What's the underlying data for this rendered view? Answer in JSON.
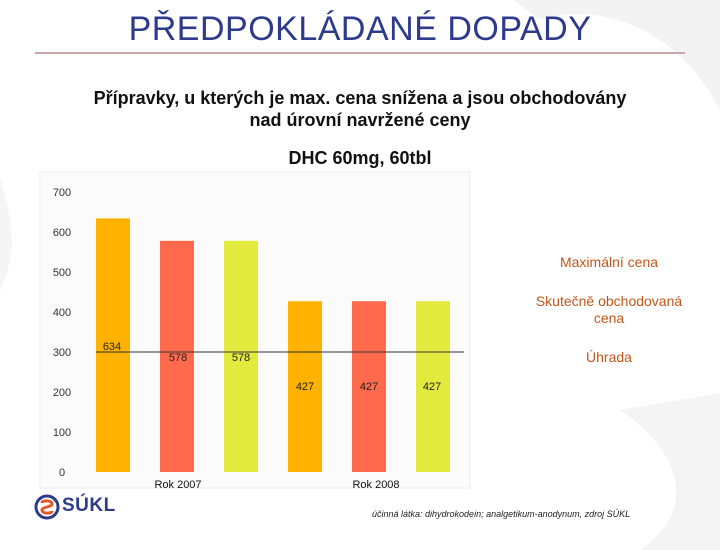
{
  "slide": {
    "title": "PŘEDPOKLÁDANÉ DOPADY",
    "subtitle_line1": "Přípravky, u kterých je max. cena snížena a jsou obchodovány",
    "subtitle_line2": "nad úrovní navržené ceny",
    "drug": "DHC 60mg, 60tbl",
    "source": "účinná látka: dihydrokodein; analgetikum-anodynum, zdroj SÚKL",
    "logo_text": "SÚKL"
  },
  "colors": {
    "title": "#2e3b8c",
    "max_price": "#ffb300",
    "traded_price": "#ff6a4d",
    "reimbursement": "#e2ea3d",
    "reference_line": "#333333"
  },
  "chart_data": {
    "type": "bar",
    "title": "DHC 60mg, 60tbl",
    "xlabel": "",
    "ylabel": "",
    "ylim": [
      0,
      700
    ],
    "yticks": [
      0,
      100,
      200,
      300,
      400,
      500,
      600,
      700
    ],
    "grid": false,
    "legend_position": "right",
    "categories": [
      "Rok 2007",
      "Rok 2008"
    ],
    "series": [
      {
        "name": "Maximální cena",
        "values": [
          634,
          427
        ]
      },
      {
        "name": "Skutečně obchodovaná cena",
        "values": [
          578,
          427
        ]
      },
      {
        "name": "Úhrada",
        "values": [
          578,
          427
        ]
      }
    ],
    "data_labels": [
      {
        "text": "634",
        "value": 634
      },
      {
        "text": "578",
        "value": 578
      },
      {
        "text": "578",
        "value": 578
      },
      {
        "text": "427",
        "value": 427
      },
      {
        "text": "427",
        "value": 427
      },
      {
        "text": "427",
        "value": 427
      }
    ],
    "reference_line_value": 300
  }
}
